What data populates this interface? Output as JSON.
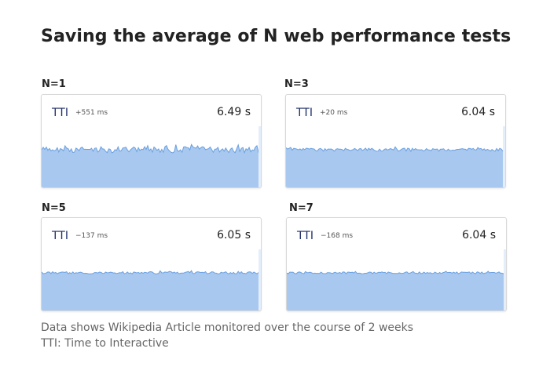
{
  "title": "Saving the average of N web performance tests",
  "footnotes": [
    "Data shows Wikipedia Article monitored over the course of 2 weeks",
    "TTI: Time to Interactive"
  ],
  "colors": {
    "area_fill": "#a8c8ef",
    "line": "#6aa0e0",
    "metric_text": "#1f2f6b"
  },
  "chart_data": [
    {
      "type": "area",
      "panel_label": "N=1",
      "metric": "TTI",
      "delta": "+551 ms",
      "value": "6.49 s",
      "noise": 1.0
    },
    {
      "type": "area",
      "panel_label": "N=3",
      "metric": "TTI",
      "delta": "+20 ms",
      "value": "6.04 s",
      "noise": 0.5
    },
    {
      "type": "area",
      "panel_label": "N=5",
      "metric": "TTI",
      "delta": "−137 ms",
      "value": "6.05 s",
      "noise": 0.35
    },
    {
      "type": "area",
      "panel_label": "N=7",
      "metric": "TTI",
      "delta": "−168 ms",
      "value": "6.04 s",
      "noise": 0.3
    }
  ]
}
